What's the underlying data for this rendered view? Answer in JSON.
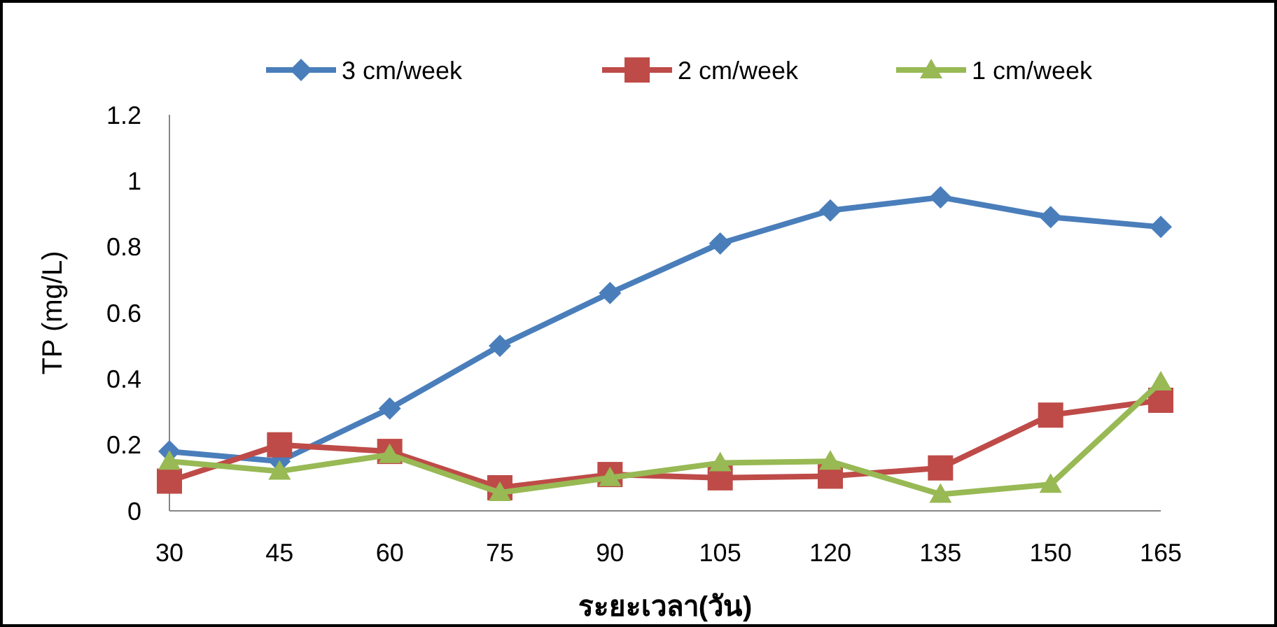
{
  "chart_data": {
    "type": "line",
    "xlabel": "ระยะเวลา(วัน)",
    "ylabel": "TP (mg/L)",
    "categories": [
      "30",
      "45",
      "60",
      "75",
      "90",
      "105",
      "120",
      "135",
      "150",
      "165"
    ],
    "series": [
      {
        "name": "3 cm/week",
        "color": "#4a7ebb",
        "marker": "diamond",
        "values": [
          0.18,
          0.15,
          0.31,
          0.5,
          0.66,
          0.81,
          0.91,
          0.95,
          0.89,
          0.86
        ]
      },
      {
        "name": "2 cm/week",
        "color": "#be4b48",
        "marker": "square",
        "values": [
          0.09,
          0.2,
          0.18,
          0.07,
          0.11,
          0.1,
          0.105,
          0.13,
          0.29,
          0.335
        ]
      },
      {
        "name": "1 cm/week",
        "color": "#98b954",
        "marker": "triangle",
        "values": [
          0.15,
          0.12,
          0.17,
          0.055,
          0.1,
          0.145,
          0.15,
          0.05,
          0.08,
          0.39
        ]
      }
    ],
    "ylim": [
      0,
      1.2
    ],
    "yticks": [
      0,
      {
        "value": 0.2,
        "label": "0.2"
      },
      {
        "value": 0.4,
        "label": "0.4"
      },
      {
        "value": 0.6,
        "label": "0.6"
      },
      {
        "value": 0.8,
        "label": "0.8"
      },
      1,
      {
        "value": 1.2,
        "label": "1.2"
      }
    ],
    "grid": false,
    "legend": "top",
    "line_style": "solid"
  }
}
